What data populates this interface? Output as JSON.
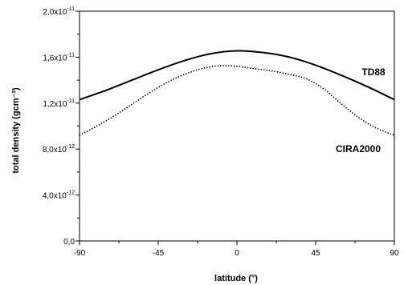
{
  "chart_data": {
    "type": "line",
    "xlabel": "latitude (°)",
    "ylabel": "total density (gcm⁻³)",
    "xlim": [
      -90,
      90
    ],
    "ylim": [
      0,
      2e-11
    ],
    "xticks": [
      {
        "value": -90,
        "label": "-90"
      },
      {
        "value": -45,
        "label": "-45"
      },
      {
        "value": 0,
        "label": "0"
      },
      {
        "value": 45,
        "label": "45"
      },
      {
        "value": 90,
        "label": "90"
      }
    ],
    "yticks": [
      {
        "value": 0,
        "mantissa": "0,0",
        "exponent": ""
      },
      {
        "value": 4e-12,
        "mantissa": "4,0x10",
        "exponent": "-12"
      },
      {
        "value": 8e-12,
        "mantissa": "8,0x10",
        "exponent": "-12"
      },
      {
        "value": 1.2e-11,
        "mantissa": "1,2x10",
        "exponent": "-11"
      },
      {
        "value": 1.6e-11,
        "mantissa": "1,6x10",
        "exponent": "-11"
      },
      {
        "value": 2e-11,
        "mantissa": "2,0x10",
        "exponent": "-11"
      }
    ],
    "grid": false,
    "series": [
      {
        "name": "TD88",
        "style": "solid",
        "x": [
          -90,
          -75,
          -60,
          -45,
          -30,
          -15,
          0,
          15,
          30,
          45,
          60,
          75,
          90
        ],
        "y": [
          1.23e-11,
          1.31e-11,
          1.4e-11,
          1.49e-11,
          1.57e-11,
          1.63e-11,
          1.655e-11,
          1.64e-11,
          1.6e-11,
          1.53e-11,
          1.44e-11,
          1.34e-11,
          1.23e-11
        ]
      },
      {
        "name": "CIRA2000",
        "style": "dotted",
        "x": [
          -90,
          -80,
          -70,
          -60,
          -50,
          -40,
          -30,
          -20,
          -10,
          0,
          10,
          20,
          30,
          40,
          50,
          60,
          70,
          80,
          90
        ],
        "y": [
          9.2e-12,
          1e-11,
          1.09e-11,
          1.19e-11,
          1.29e-11,
          1.38e-11,
          1.45e-11,
          1.5e-11,
          1.525e-11,
          1.52e-11,
          1.5e-11,
          1.48e-11,
          1.45e-11,
          1.41e-11,
          1.32e-11,
          1.19e-11,
          1.07e-11,
          9.8e-12,
          9.2e-12
        ]
      }
    ]
  }
}
